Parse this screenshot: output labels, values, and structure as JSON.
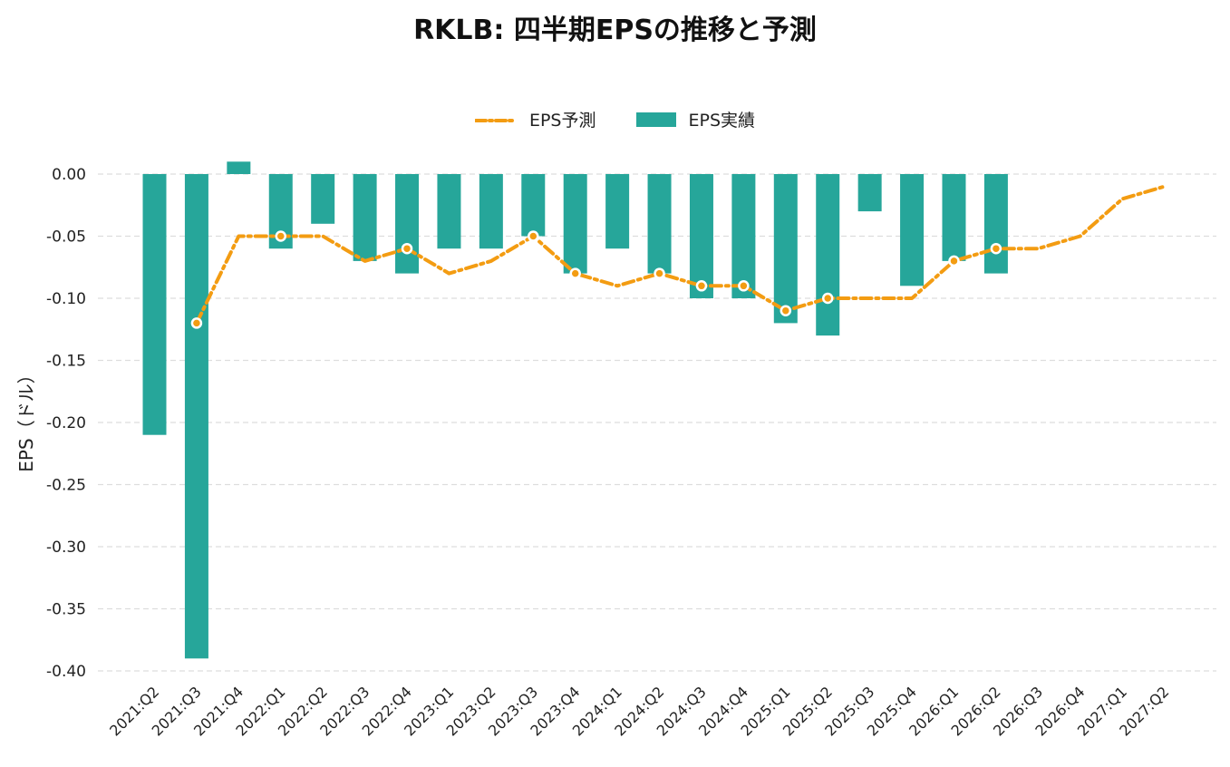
{
  "chart_data": {
    "type": "bar",
    "title": "RKLB: 四半期EPSの推移と予測",
    "ylabel": "EPS（ドル）",
    "xlabel": "",
    "ylim": [
      -0.4,
      0.0
    ],
    "yticks": [
      "0.00",
      "-0.05",
      "-0.10",
      "-0.15",
      "-0.20",
      "-0.25",
      "-0.30",
      "-0.35",
      "-0.40"
    ],
    "ytick_values": [
      0.0,
      -0.05,
      -0.1,
      -0.15,
      -0.2,
      -0.25,
      -0.3,
      -0.35,
      -0.4
    ],
    "grid": true,
    "legend_position": "top-center",
    "categories": [
      "2021:Q2",
      "2021:Q3",
      "2021:Q4",
      "2022:Q1",
      "2022:Q2",
      "2022:Q3",
      "2022:Q4",
      "2023:Q1",
      "2023:Q2",
      "2023:Q3",
      "2023:Q4",
      "2024:Q1",
      "2024:Q2",
      "2024:Q3",
      "2024:Q4",
      "2025:Q1",
      "2025:Q2",
      "2025:Q3",
      "2025:Q4",
      "2026:Q1",
      "2026:Q2",
      "2026:Q3",
      "2026:Q4",
      "2027:Q1",
      "2027:Q2"
    ],
    "series": [
      {
        "name": "EPS予測",
        "kind": "line",
        "color": "#F39C12",
        "values": [
          null,
          -0.12,
          -0.05,
          -0.05,
          -0.05,
          -0.07,
          -0.06,
          -0.08,
          -0.07,
          -0.05,
          -0.08,
          -0.09,
          -0.08,
          -0.09,
          -0.09,
          -0.11,
          -0.1,
          -0.1,
          -0.1,
          -0.07,
          -0.06,
          -0.06,
          -0.05,
          -0.02,
          -0.01
        ],
        "markers": [
          false,
          true,
          false,
          true,
          false,
          false,
          true,
          false,
          false,
          true,
          true,
          false,
          true,
          true,
          true,
          true,
          true,
          false,
          false,
          true,
          true,
          false,
          false,
          false,
          false
        ]
      },
      {
        "name": "EPS実績",
        "kind": "bar",
        "color": "#26A69A",
        "values": [
          -0.21,
          -0.39,
          0.01,
          -0.06,
          -0.04,
          -0.07,
          -0.08,
          -0.06,
          -0.06,
          -0.05,
          -0.08,
          -0.06,
          -0.08,
          -0.1,
          -0.1,
          -0.12,
          -0.13,
          -0.03,
          -0.09,
          -0.07,
          -0.08,
          null,
          null,
          null,
          null
        ]
      }
    ]
  },
  "legend": {
    "forecast_label": "EPS予測",
    "actual_label": "EPS実績"
  }
}
